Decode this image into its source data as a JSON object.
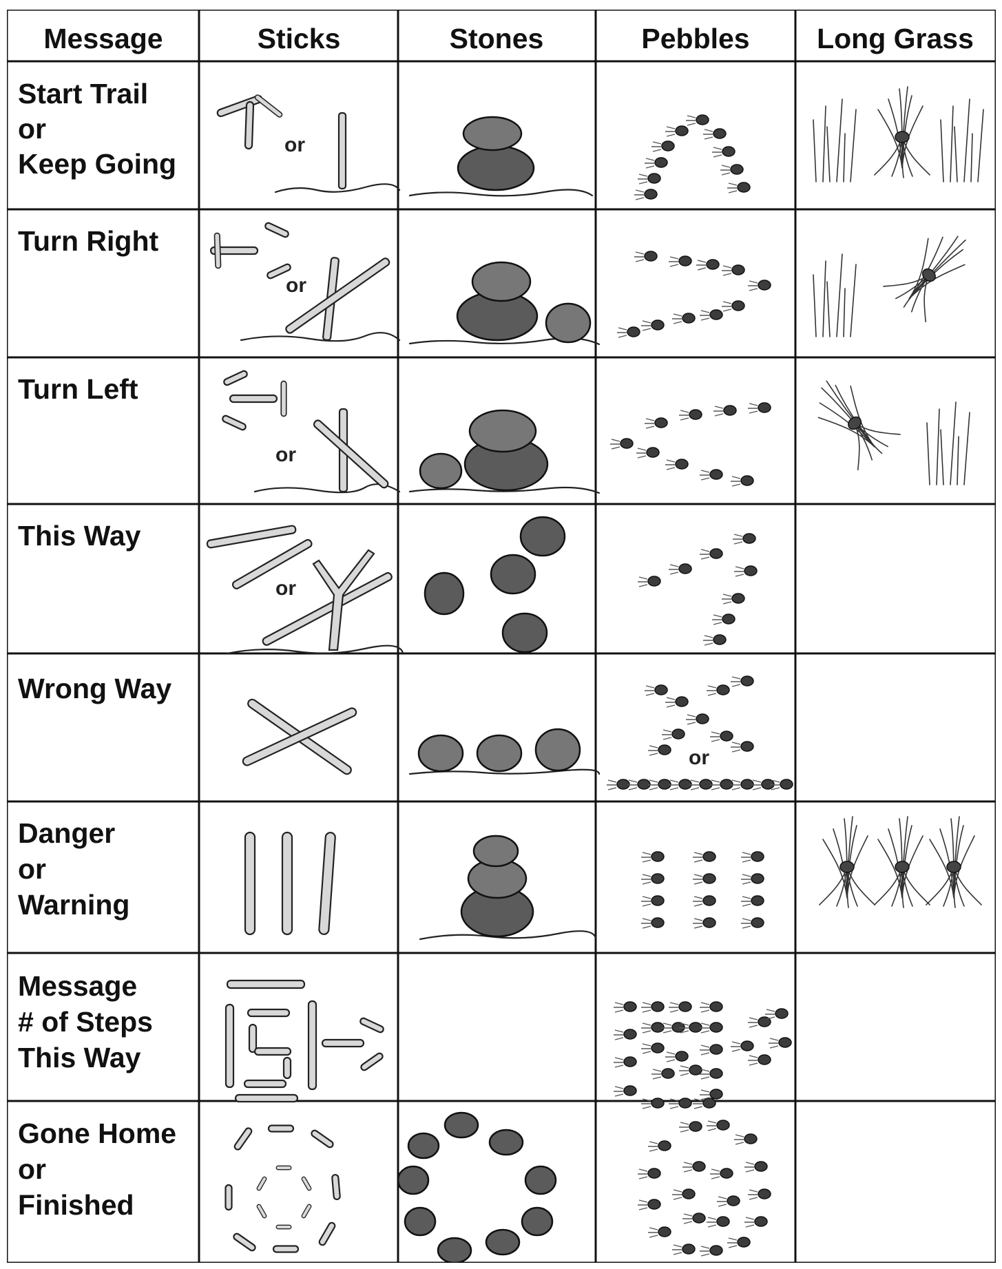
{
  "headers": [
    "Message",
    "Sticks",
    "Stones",
    "Pebbles",
    "Long Grass"
  ],
  "rows": [
    {
      "message": [
        "Start Trail",
        "or",
        "Keep Going"
      ]
    },
    {
      "message": [
        "Turn Right"
      ]
    },
    {
      "message": [
        "Turn Left"
      ]
    },
    {
      "message": [
        "This Way"
      ]
    },
    {
      "message": [
        "Wrong Way"
      ]
    },
    {
      "message": [
        "Danger",
        "or",
        "Warning"
      ]
    },
    {
      "message": [
        "Message",
        "# of Steps",
        "This Way"
      ]
    },
    {
      "message": [
        "Gone Home",
        "or",
        "Finished"
      ]
    }
  ],
  "or_label": "or",
  "icons": {
    "sticks": "stick-sign-icon",
    "stones": "stone-cairn-icon",
    "pebbles": "pebble-pattern-icon",
    "grass": "tied-grass-icon"
  }
}
